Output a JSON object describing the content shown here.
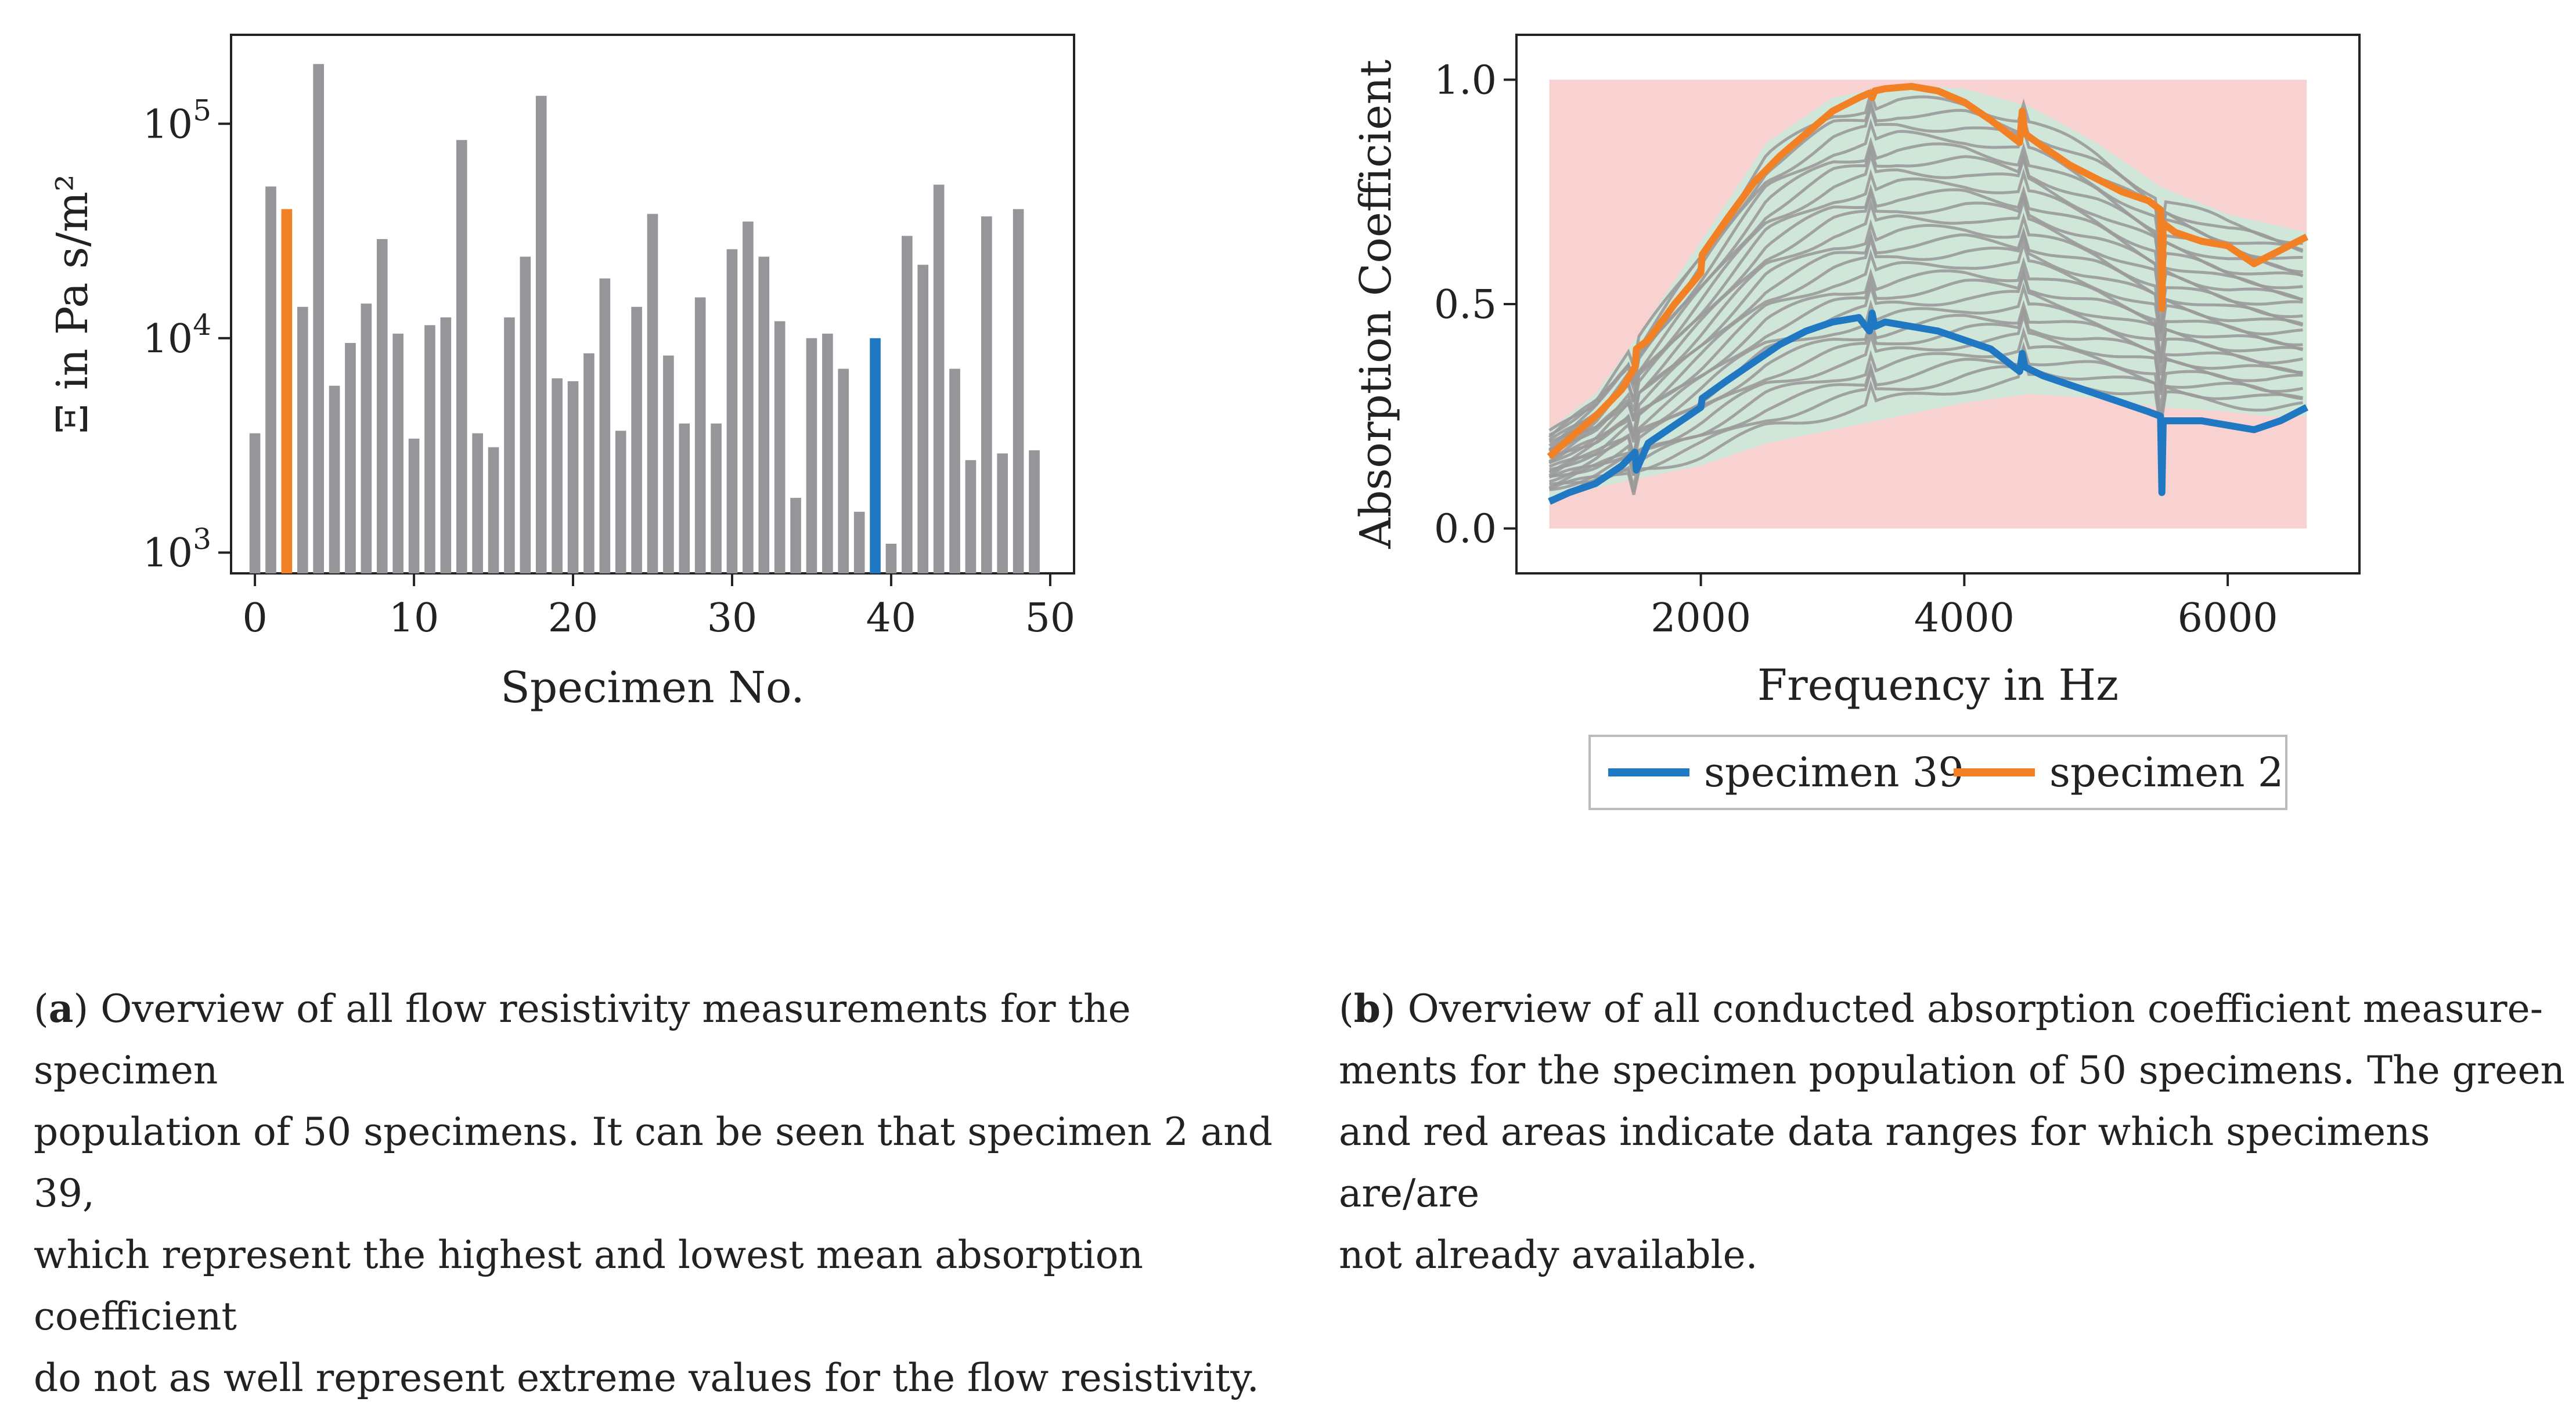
{
  "chart_data": [
    {
      "type": "bar",
      "title": "",
      "xlabel": "Specimen No.",
      "ylabel": "Ξ in Pa s/m²",
      "yscale": "log",
      "ylim": [
        800,
        260000
      ],
      "xlim": [
        -1.5,
        51.5
      ],
      "xticks": [
        0,
        10,
        20,
        30,
        40,
        50
      ],
      "yticks": [
        {
          "value": 1000,
          "base": "10",
          "exp": "3"
        },
        {
          "value": 10000,
          "base": "10",
          "exp": "4"
        },
        {
          "value": 100000,
          "base": "10",
          "exp": "5"
        }
      ],
      "categories": [
        0,
        1,
        2,
        3,
        4,
        5,
        6,
        7,
        8,
        9,
        10,
        11,
        12,
        13,
        14,
        15,
        16,
        17,
        18,
        19,
        20,
        21,
        22,
        23,
        24,
        25,
        26,
        27,
        28,
        29,
        30,
        31,
        32,
        33,
        34,
        35,
        36,
        37,
        38,
        39,
        40,
        41,
        42,
        43,
        44,
        45,
        46,
        47,
        48,
        49
      ],
      "values": [
        3600,
        51000,
        40000,
        14000,
        190000,
        6000,
        9500,
        14500,
        29000,
        10500,
        3400,
        11500,
        12500,
        84000,
        3600,
        3100,
        12500,
        24000,
        135000,
        6500,
        6300,
        8500,
        19000,
        3700,
        14000,
        38000,
        8300,
        4000,
        15500,
        4000,
        26000,
        35000,
        24000,
        12000,
        1800,
        10000,
        10500,
        7200,
        1550,
        10000,
        1100,
        30000,
        22000,
        52000,
        7200,
        2700,
        37000,
        2900,
        40000,
        3000
      ],
      "highlight": {
        "2": "specimen 2",
        "39": "specimen 39"
      },
      "colors": {
        "default": "#95959a",
        "specimen 2": "#f28024",
        "specimen 39": "#1f78c1"
      }
    },
    {
      "type": "line",
      "title": "",
      "xlabel": "Frequency in Hz",
      "ylabel": "Absorption Coefficient",
      "xlim": [
        600,
        7000
      ],
      "ylim": [
        -0.1,
        1.1
      ],
      "xticks": [
        2000,
        4000,
        6000
      ],
      "yticks": [
        "0.0",
        "0.5",
        "1.0"
      ],
      "red_region": {
        "x": [
          850,
          6600
        ],
        "y": [
          0,
          1
        ]
      },
      "green_region": {
        "x": [
          850,
          1200,
          1500,
          2000,
          2500,
          3000,
          3500,
          4000,
          4500,
          5000,
          5500,
          6000,
          6300,
          6600
        ],
        "upper": [
          0.22,
          0.3,
          0.42,
          0.64,
          0.86,
          0.96,
          0.99,
          0.98,
          0.94,
          0.86,
          0.76,
          0.7,
          0.68,
          0.66
        ],
        "lower": [
          0.07,
          0.09,
          0.11,
          0.14,
          0.19,
          0.22,
          0.25,
          0.28,
          0.3,
          0.29,
          0.27,
          0.26,
          0.25,
          0.25
        ]
      },
      "series": [
        {
          "name": "specimen 39",
          "color": "#1f78c1",
          "x": [
            850,
            1000,
            1200,
            1400,
            1500,
            1510,
            1600,
            1800,
            2000,
            2010,
            2200,
            2400,
            2600,
            2800,
            3000,
            3200,
            3280,
            3300,
            3320,
            3400,
            3600,
            3800,
            4000,
            4200,
            4420,
            4440,
            4460,
            4600,
            4800,
            5000,
            5200,
            5400,
            5490,
            5500,
            5510,
            5600,
            5800,
            6000,
            6200,
            6400,
            6600
          ],
          "y": [
            0.06,
            0.08,
            0.1,
            0.14,
            0.17,
            0.13,
            0.19,
            0.23,
            0.27,
            0.29,
            0.33,
            0.37,
            0.41,
            0.44,
            0.46,
            0.47,
            0.44,
            0.48,
            0.45,
            0.46,
            0.45,
            0.44,
            0.42,
            0.4,
            0.35,
            0.39,
            0.36,
            0.34,
            0.32,
            0.3,
            0.28,
            0.26,
            0.25,
            0.08,
            0.24,
            0.24,
            0.24,
            0.23,
            0.22,
            0.24,
            0.27
          ]
        },
        {
          "name": "specimen 2",
          "color": "#f28024",
          "x": [
            850,
            1000,
            1200,
            1400,
            1500,
            1510,
            1600,
            1800,
            2000,
            2010,
            2200,
            2400,
            2600,
            2800,
            3000,
            3200,
            3280,
            3300,
            3320,
            3400,
            3600,
            3800,
            4000,
            4200,
            4420,
            4440,
            4460,
            4600,
            4800,
            5000,
            5200,
            5400,
            5490,
            5500,
            5510,
            5600,
            5800,
            6000,
            6200,
            6400,
            6600
          ],
          "y": [
            0.16,
            0.2,
            0.25,
            0.31,
            0.36,
            0.4,
            0.42,
            0.5,
            0.57,
            0.61,
            0.69,
            0.77,
            0.83,
            0.88,
            0.93,
            0.96,
            0.97,
            0.96,
            0.975,
            0.98,
            0.985,
            0.975,
            0.95,
            0.91,
            0.86,
            0.93,
            0.88,
            0.85,
            0.81,
            0.78,
            0.75,
            0.73,
            0.71,
            0.49,
            0.68,
            0.66,
            0.64,
            0.63,
            0.59,
            0.62,
            0.65
          ]
        }
      ],
      "legend": {
        "placement": "below",
        "entries": [
          "specimen 39",
          "specimen 2"
        ]
      }
    }
  ],
  "captions": {
    "a": {
      "label": "a",
      "lines": [
        ") Overview of all flow resistivity measurements for the specimen",
        "population of 50 specimens. It can be seen that specimen 2 and 39,",
        "which represent the highest and lowest mean absorption coefficient",
        "do not as well represent extreme values for the flow resistivity."
      ]
    },
    "b": {
      "label": "b",
      "lines": [
        ") Overview of all conducted absorption coefficient measure-",
        "ments for the specimen population of 50 specimens. The green",
        "and red areas indicate data ranges for which specimens are/are",
        "not already available."
      ]
    }
  }
}
